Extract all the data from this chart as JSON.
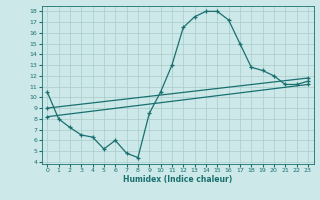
{
  "xlabel": "Humidex (Indice chaleur)",
  "ylabel": "",
  "background_color": "#cce8e8",
  "line_color": "#1a7070",
  "grid_color": "#aacccc",
  "xlim": [
    -0.5,
    23.5
  ],
  "ylim": [
    3.8,
    18.5
  ],
  "xticks": [
    0,
    1,
    2,
    3,
    4,
    5,
    6,
    7,
    8,
    9,
    10,
    11,
    12,
    13,
    14,
    15,
    16,
    17,
    18,
    19,
    20,
    21,
    22,
    23
  ],
  "yticks": [
    4,
    5,
    6,
    7,
    8,
    9,
    10,
    11,
    12,
    13,
    14,
    15,
    16,
    17,
    18
  ],
  "curve1_x": [
    0,
    1,
    2,
    3,
    4,
    5,
    6,
    7,
    8,
    9,
    10,
    11,
    12,
    13,
    14,
    15,
    16,
    17,
    18,
    19,
    20,
    21,
    22,
    23
  ],
  "curve1_y": [
    10.5,
    8.0,
    7.2,
    6.5,
    6.3,
    5.2,
    6.0,
    4.8,
    4.4,
    8.5,
    10.5,
    13.0,
    16.5,
    17.5,
    18.0,
    18.0,
    17.2,
    15.0,
    12.8,
    12.5,
    12.0,
    11.2,
    11.2,
    11.5
  ],
  "curve2_x": [
    0,
    23
  ],
  "curve2_y": [
    9.0,
    11.8
  ],
  "curve3_x": [
    0,
    23
  ],
  "curve3_y": [
    8.2,
    11.2
  ]
}
